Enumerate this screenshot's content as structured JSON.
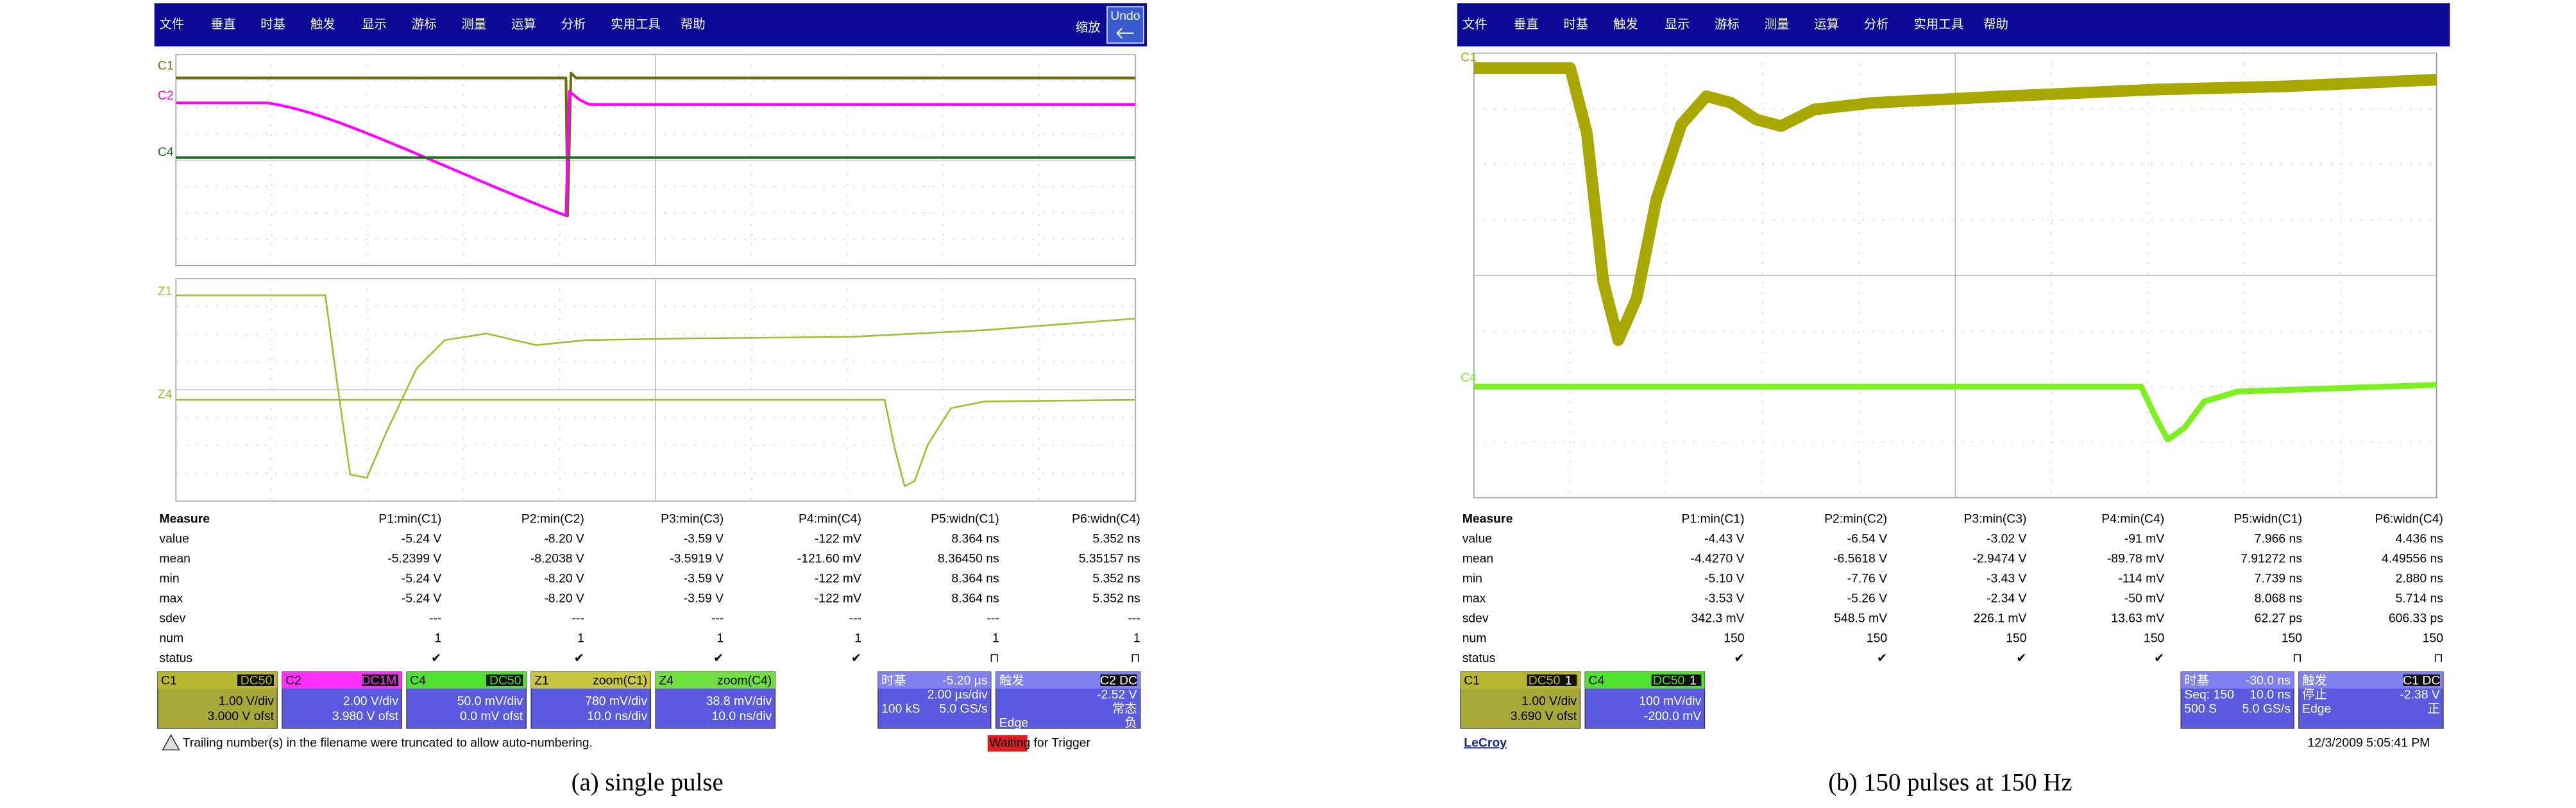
{
  "panels": [
    {
      "menu": [
        "文件",
        "垂直",
        "时基",
        "触发",
        "显示",
        "游标",
        "测量",
        "运算",
        "分析",
        "实用工具",
        "帮助"
      ],
      "zoom": "缩放",
      "undo": "Undo",
      "traces": [
        {
          "label": "C1",
          "color": "#6e6e10"
        },
        {
          "label": "C2",
          "color": "#ff00ff"
        },
        {
          "label": "C4",
          "color": "#1f6e1f"
        },
        {
          "label": "Z1",
          "color": "#9ac030"
        },
        {
          "label": "Z4",
          "color": "#9ac030"
        }
      ],
      "measure": {
        "header": [
          "Measure",
          "P1:min(C1)",
          "P2:min(C2)",
          "P3:min(C3)",
          "P4:min(C4)",
          "P5:widn(C1)",
          "P6:widn(C4)"
        ],
        "rows": [
          [
            "value",
            "-5.24 V",
            "-8.20 V",
            "-3.59 V",
            "-122 mV",
            "8.364 ns",
            "5.352 ns"
          ],
          [
            "mean",
            "-5.2399 V",
            "-8.2038 V",
            "-3.5919 V",
            "-121.60 mV",
            "8.36450 ns",
            "5.35157 ns"
          ],
          [
            "min",
            "-5.24 V",
            "-8.20 V",
            "-3.59 V",
            "-122 mV",
            "8.364 ns",
            "5.352 ns"
          ],
          [
            "max",
            "-5.24 V",
            "-8.20 V",
            "-3.59 V",
            "-122 mV",
            "8.364 ns",
            "5.352 ns"
          ],
          [
            "sdev",
            "---",
            "---",
            "---",
            "---",
            "---",
            "---"
          ],
          [
            "num",
            "1",
            "1",
            "1",
            "1",
            "1",
            "1"
          ],
          [
            "status",
            "✔",
            "✔",
            "✔",
            "✔",
            "⊓",
            "⊓"
          ]
        ]
      },
      "channels": [
        {
          "name": "C1",
          "tag": "DC50",
          "color": "#b8b830",
          "body_color": "#a8a838",
          "lines": [
            "1.00 V/div",
            "3.000 V ofst"
          ]
        },
        {
          "name": "C2",
          "tag": "DC1M",
          "color": "#ff30ff",
          "body_color": "#5a5ae0",
          "lines": [
            "2.00 V/div",
            "3.980 V ofst"
          ]
        },
        {
          "name": "C4",
          "tag": "DC50",
          "color": "#50e030",
          "body_color": "#5a5ae0",
          "lines": [
            "50.0 mV/div",
            "0.0 mV ofst"
          ]
        },
        {
          "name": "Z1",
          "tag": "zoom(C1)",
          "color": "#c8c840",
          "body_color": "#5a5ae0",
          "lines": [
            "780 mV/div",
            "10.0 ns/div"
          ]
        },
        {
          "name": "Z4",
          "tag": "zoom(C4)",
          "color": "#70e040",
          "body_color": "#5a5ae0",
          "lines": [
            "38.8 mV/div",
            "10.0 ns/div"
          ]
        }
      ],
      "timebase": {
        "title": "时基",
        "value": "-5.20 µs",
        "rows": [
          [
            "2.00 µs/div"
          ],
          [
            "100 kS",
            "5.0 GS/s"
          ]
        ]
      },
      "trigger": {
        "title": "触发",
        "tag": "C2 DC",
        "rows": [
          [
            "-2.52 V"
          ],
          [
            "常态"
          ],
          [
            "Edge",
            "负"
          ]
        ]
      },
      "footer_left": "Trailing number(s) in the filename were truncated to allow auto-numbering.",
      "footer_right": "Waiting for Trigger",
      "caption": "(a) single pulse"
    },
    {
      "menu": [
        "文件",
        "垂直",
        "时基",
        "触发",
        "显示",
        "游标",
        "测量",
        "运算",
        "分析",
        "实用工具",
        "帮助"
      ],
      "traces": [
        {
          "label": "C1",
          "color": "#a8a800"
        },
        {
          "label": "C4",
          "color": "#7cf020"
        }
      ],
      "measure": {
        "header": [
          "Measure",
          "P1:min(C1)",
          "P2:min(C2)",
          "P3:min(C3)",
          "P4:min(C4)",
          "P5:widn(C1)",
          "P6:widn(C4)"
        ],
        "rows": [
          [
            "value",
            "-4.43 V",
            "-6.54 V",
            "-3.02 V",
            "-91 mV",
            "7.966 ns",
            "4.436 ns"
          ],
          [
            "mean",
            "-4.4270 V",
            "-6.5618 V",
            "-2.9474 V",
            "-89.78 mV",
            "7.91272 ns",
            "4.49556 ns"
          ],
          [
            "min",
            "-5.10 V",
            "-7.76 V",
            "-3.43 V",
            "-114 mV",
            "7.739 ns",
            "2.880 ns"
          ],
          [
            "max",
            "-3.53 V",
            "-5.26 V",
            "-2.34 V",
            "-50 mV",
            "8.068 ns",
            "5.714 ns"
          ],
          [
            "sdev",
            "342.3 mV",
            "548.5 mV",
            "226.1 mV",
            "13.63 mV",
            "62.27 ps",
            "606.33 ps"
          ],
          [
            "num",
            "150",
            "150",
            "150",
            "150",
            "150",
            "150"
          ],
          [
            "status",
            "✔",
            "✔",
            "✔",
            "✔",
            "⊓",
            "⊓"
          ]
        ]
      },
      "channels": [
        {
          "name": "C1",
          "tag": "DC50",
          "badge": "1",
          "color": "#b8b830",
          "body_color": "#a8a838",
          "lines": [
            "1.00 V/div",
            "3.690 V ofst"
          ]
        },
        {
          "name": "C4",
          "tag": "DC50",
          "badge": "1",
          "color": "#50e030",
          "body_color": "#5a5ae0",
          "lines": [
            "100 mV/div",
            "-200.0 mV"
          ]
        }
      ],
      "timebase": {
        "title": "时基",
        "value": "-30.0 ns",
        "rows": [
          [
            "Seq: 150",
            "10.0 ns"
          ],
          [
            "500 S",
            "5.0 GS/s"
          ]
        ]
      },
      "trigger": {
        "title": "触发",
        "tag": "C1 DC",
        "rows": [
          [
            "停止",
            "-2.38 V"
          ],
          [
            "Edge",
            "正"
          ]
        ]
      },
      "brand": "LeCroy",
      "timestamp": "12/3/2009 5:05:41 PM",
      "caption": "(b) 150 pulses at 150 Hz"
    }
  ]
}
